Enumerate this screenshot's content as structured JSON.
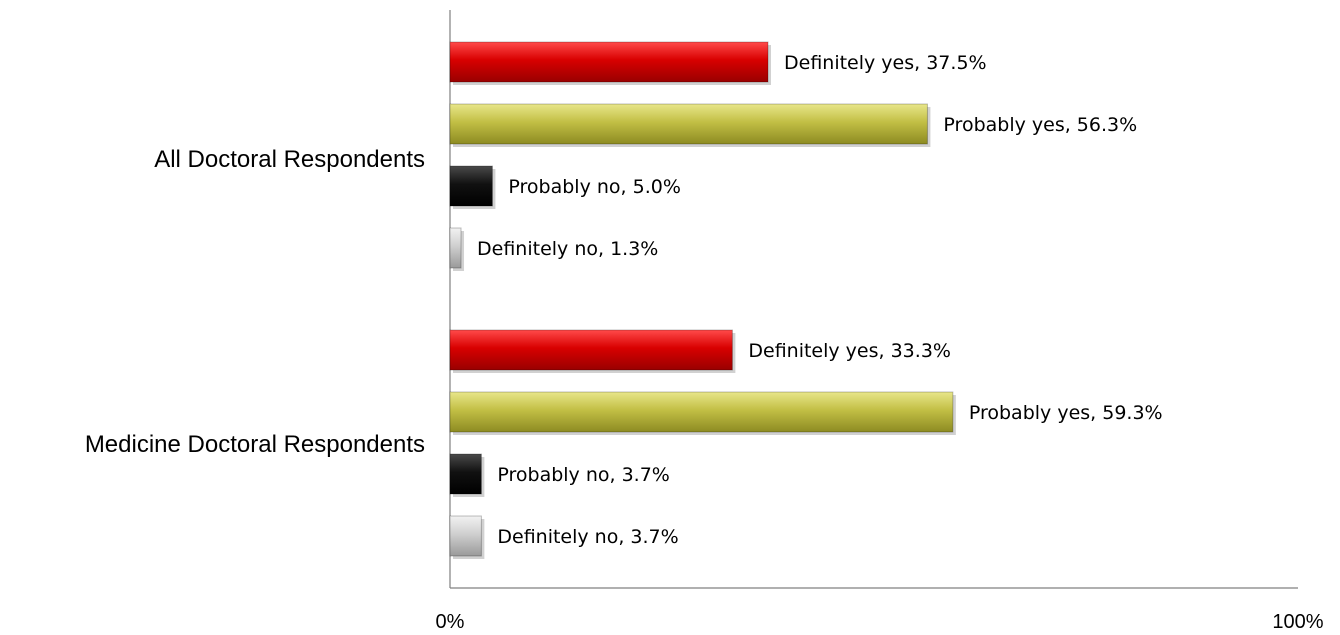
{
  "chart_data": {
    "type": "bar",
    "orientation": "horizontal",
    "categories": [
      "All Doctoral Respondents",
      "Medicine Doctoral Respondents"
    ],
    "series": [
      {
        "name": "Definitely yes",
        "values": [
          37.5,
          33.3
        ],
        "color": "#cc0000"
      },
      {
        "name": "Probably yes",
        "values": [
          56.3,
          59.3
        ],
        "color": "#b5b33a"
      },
      {
        "name": "Probably no",
        "values": [
          5.0,
          3.7
        ],
        "color": "#111111"
      },
      {
        "name": "Definitely no",
        "values": [
          1.3,
          3.7
        ],
        "color": "#c8c8c8"
      }
    ],
    "data_labels": [
      [
        "Definitely yes, 37.5%",
        "Probably yes, 56.3%",
        "Probably no, 5.0%",
        "Definitely no, 1.3%"
      ],
      [
        "Definitely yes, 33.3%",
        "Probably yes, 59.3%",
        "Probably no, 3.7%",
        "Definitely no, 3.7%"
      ]
    ],
    "xlim": [
      0,
      100
    ],
    "x_tick_labels": [
      "0%",
      "100%"
    ],
    "title": "",
    "xlabel": "",
    "ylabel": "",
    "grid": false,
    "legend": "none"
  }
}
